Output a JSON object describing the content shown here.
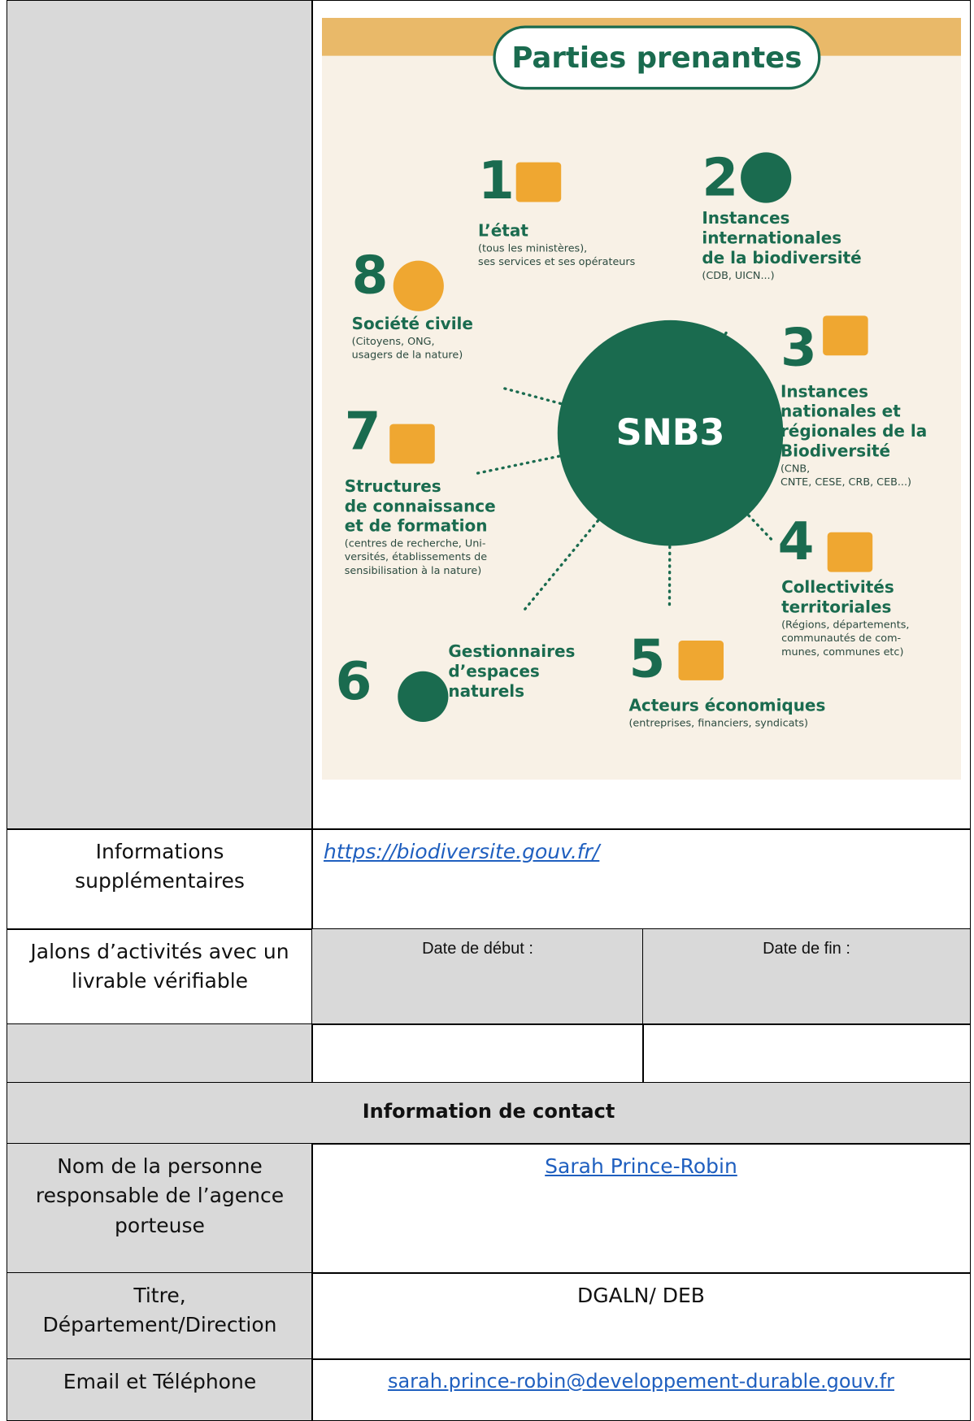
{
  "infographic": {
    "title": "Parties prenantes",
    "center": "SNB3",
    "stakeholders": [
      {
        "number": "1",
        "name_lines": [
          "L’état"
        ],
        "detail_lines": [
          "(tous les ministères),",
          "ses services et ses opérateurs"
        ]
      },
      {
        "number": "2",
        "name_lines": [
          "Instances",
          "internationales",
          "de la biodiversité"
        ],
        "detail_lines": [
          "(CDB, UICN...)"
        ]
      },
      {
        "number": "3",
        "name_lines": [
          "Instances",
          "nationales et",
          "régionales de la",
          "Biodiversité"
        ],
        "detail_lines": [
          "(CNB,",
          "CNTE, CESE, CRB, CEB...)"
        ]
      },
      {
        "number": "4",
        "name_lines": [
          "Collectivités",
          "territoriales"
        ],
        "detail_lines": [
          "(Régions, départements,",
          "communautés de com-",
          "munes, communes etc)"
        ]
      },
      {
        "number": "5",
        "name_lines": [
          "Acteurs économiques"
        ],
        "detail_lines": [
          "(entreprises, financiers, syndicats)"
        ]
      },
      {
        "number": "6",
        "name_lines": [
          "Gestionnaires",
          "d’espaces",
          "naturels"
        ],
        "detail_lines": []
      },
      {
        "number": "7",
        "name_lines": [
          "Structures",
          "de connaissance",
          "et de formation"
        ],
        "detail_lines": [
          "(centres de recherche, Uni-",
          "versités, établissements de",
          "sensibilisation à la nature)"
        ]
      },
      {
        "number": "8",
        "name_lines": [
          "Société civile"
        ],
        "detail_lines": [
          "(Citoyens, ONG,",
          "usagers de la nature)"
        ]
      }
    ]
  },
  "table": {
    "info": {
      "label": "Informations supplémentaires",
      "link": "https://biodiversite.gouv.fr/"
    },
    "milestones": {
      "label": "Jalons d’activités avec un livrable vérifiable",
      "start": "Date de début :",
      "end": "Date de fin :"
    },
    "contact_header": "Information de contact",
    "name": {
      "label": "Nom de la personne responsable de l’agence porteuse",
      "value": "Sarah Prince-Robin"
    },
    "title": {
      "label": "Titre, Département/Direction",
      "value": "DGALN/ DEB"
    },
    "email": {
      "label": "Email et Téléphone",
      "value": "sarah.prince-robin@developpement-durable.gouv.fr"
    }
  }
}
